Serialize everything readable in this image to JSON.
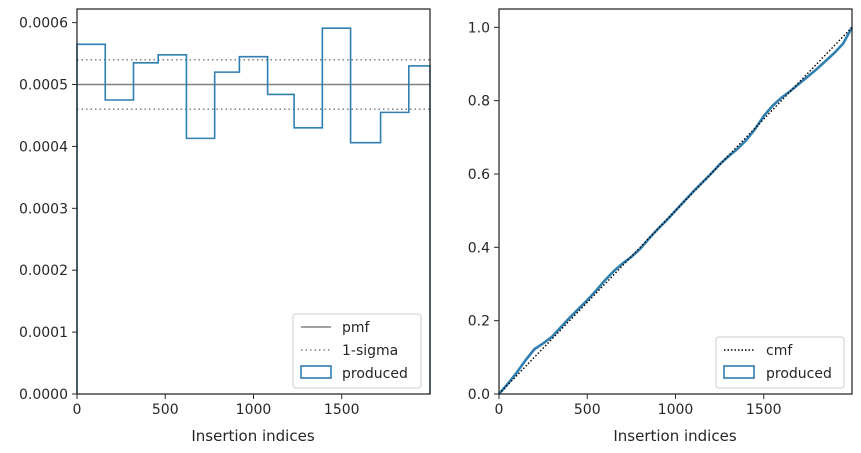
{
  "colors": {
    "hist": "#2f7fb1",
    "pmf": "#808080",
    "sigma": "#808080",
    "cmf": "#000000",
    "axes": "#262626"
  },
  "chart_data": [
    {
      "type": "step",
      "xlabel": "Insertion indices",
      "ylabel": "",
      "xlim": [
        0,
        2000
      ],
      "ylim": [
        0,
        0.000622
      ],
      "xticks": [
        0,
        500,
        1000,
        1500
      ],
      "xtick_labels": [
        "0",
        "500",
        "1000",
        "1500"
      ],
      "yticks": [
        0,
        0.0001,
        0.0002,
        0.0003,
        0.0004,
        0.0005,
        0.0006
      ],
      "ytick_labels": [
        "0.0000",
        "0.0001",
        "0.0002",
        "0.0003",
        "0.0004",
        "0.0005",
        "0.0006"
      ],
      "pmf": 0.0005,
      "sigma": [
        0.00046,
        0.00054
      ],
      "bin_edges": [
        0,
        160,
        320,
        460,
        620,
        780,
        920,
        1080,
        1230,
        1390,
        1550,
        1720,
        1880,
        2000
      ],
      "values": [
        0.000565,
        0.000475,
        0.000535,
        0.000548,
        0.000413,
        0.00052,
        0.000545,
        0.000484,
        0.00043,
        0.000591,
        0.000406,
        0.000455,
        0.00053
      ],
      "legend": [
        "pmf",
        "1-sigma",
        "produced"
      ],
      "legend_position": "lower-right"
    },
    {
      "type": "line",
      "xlabel": "Insertion indices",
      "ylabel": "",
      "xlim": [
        0,
        2000
      ],
      "ylim": [
        0,
        1.05
      ],
      "xticks": [
        0,
        500,
        1000,
        1500
      ],
      "xtick_labels": [
        "0",
        "500",
        "1000",
        "1500"
      ],
      "yticks": [
        0,
        0.2,
        0.4,
        0.6,
        0.8,
        1.0
      ],
      "ytick_labels": [
        "0.0",
        "0.2",
        "0.4",
        "0.6",
        "0.8",
        "1.0"
      ],
      "cmf": {
        "x": [
          0,
          2000
        ],
        "y": [
          0,
          1.0
        ]
      },
      "produced": {
        "x": [
          0,
          50,
          100,
          150,
          200,
          250,
          300,
          350,
          400,
          450,
          500,
          550,
          600,
          650,
          700,
          750,
          800,
          850,
          900,
          950,
          1000,
          1050,
          1100,
          1150,
          1200,
          1250,
          1300,
          1350,
          1400,
          1450,
          1500,
          1550,
          1600,
          1650,
          1700,
          1750,
          1800,
          1850,
          1900,
          1950,
          2000
        ],
        "y": [
          0,
          0.028,
          0.058,
          0.092,
          0.122,
          0.138,
          0.156,
          0.182,
          0.208,
          0.232,
          0.256,
          0.282,
          0.31,
          0.335,
          0.356,
          0.374,
          0.396,
          0.424,
          0.45,
          0.474,
          0.5,
          0.526,
          0.552,
          0.576,
          0.6,
          0.626,
          0.648,
          0.668,
          0.692,
          0.722,
          0.758,
          0.786,
          0.808,
          0.826,
          0.846,
          0.866,
          0.886,
          0.908,
          0.93,
          0.956,
          1.0
        ]
      },
      "legend": [
        "cmf",
        "produced"
      ],
      "legend_position": "lower-right"
    }
  ]
}
